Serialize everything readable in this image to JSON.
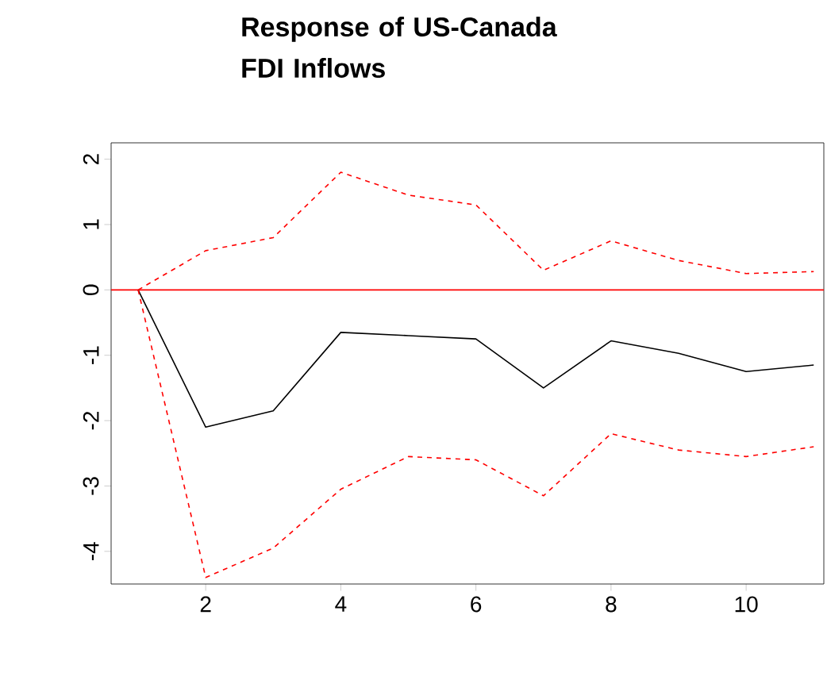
{
  "chart_data": {
    "type": "line",
    "title": "Response of US-Canada FDI Inflows",
    "x": [
      1,
      2,
      3,
      4,
      5,
      6,
      7,
      8,
      9,
      10,
      11
    ],
    "series": [
      {
        "color": "#000000",
        "line_style": "solid",
        "values": [
          0,
          -2.1,
          -1.85,
          -0.65,
          -0.7,
          -0.75,
          -1.5,
          -0.78,
          -0.97,
          -1.25,
          -1.15
        ]
      },
      {
        "color": "#ff0000",
        "line_style": "dashed",
        "values": [
          0,
          0.6,
          0.8,
          1.8,
          1.45,
          1.3,
          0.3,
          0.75,
          0.45,
          0.25,
          0.28
        ]
      },
      {
        "color": "#ff0000",
        "line_style": "dashed",
        "values": [
          0,
          -4.4,
          -3.95,
          -3.05,
          -2.55,
          -2.6,
          -3.15,
          -2.2,
          -2.45,
          -2.55,
          -2.4
        ]
      }
    ],
    "xlim": [
      0.6,
      11.15
    ],
    "ylim": [
      -4.5,
      2.25
    ],
    "xticks": [
      2,
      4,
      6,
      8,
      10
    ],
    "yticks": [
      -4,
      -3,
      -2,
      -1,
      0,
      1,
      2
    ],
    "ref_lines": [
      {
        "axis": "y",
        "value": 0,
        "color": "#ff0000"
      }
    ],
    "grid": false,
    "marker": "none"
  }
}
